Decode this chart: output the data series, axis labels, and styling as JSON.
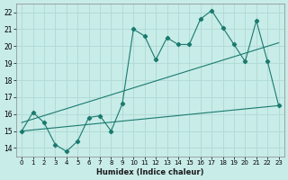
{
  "xlabel": "Humidex (Indice chaleur)",
  "background_color": "#c8ece8",
  "grid_color": "#b0d8d4",
  "line_color": "#1a7a6e",
  "xlim": [
    -0.5,
    23.5
  ],
  "ylim": [
    13.5,
    22.5
  ],
  "xticks": [
    0,
    1,
    2,
    3,
    4,
    5,
    6,
    7,
    8,
    9,
    10,
    11,
    12,
    13,
    14,
    15,
    16,
    17,
    18,
    19,
    20,
    21,
    22,
    23
  ],
  "yticks": [
    14,
    15,
    16,
    17,
    18,
    19,
    20,
    21,
    22
  ],
  "line1_x": [
    0,
    1,
    2,
    3,
    4,
    5,
    6,
    7,
    8,
    9,
    10,
    11,
    12,
    13,
    14,
    15,
    16,
    17,
    18,
    19,
    20,
    21,
    22,
    23
  ],
  "line1_y": [
    15.0,
    16.1,
    15.5,
    14.2,
    13.8,
    14.4,
    15.8,
    15.9,
    15.0,
    16.6,
    21.0,
    20.6,
    19.2,
    20.5,
    20.1,
    20.1,
    21.6,
    22.1,
    21.1,
    20.1,
    19.1,
    21.5,
    19.1,
    16.5
  ],
  "line2_x": [
    0,
    23
  ],
  "line2_y": [
    15.5,
    20.2
  ],
  "line3_x": [
    0,
    23
  ],
  "line3_y": [
    15.0,
    16.5
  ]
}
